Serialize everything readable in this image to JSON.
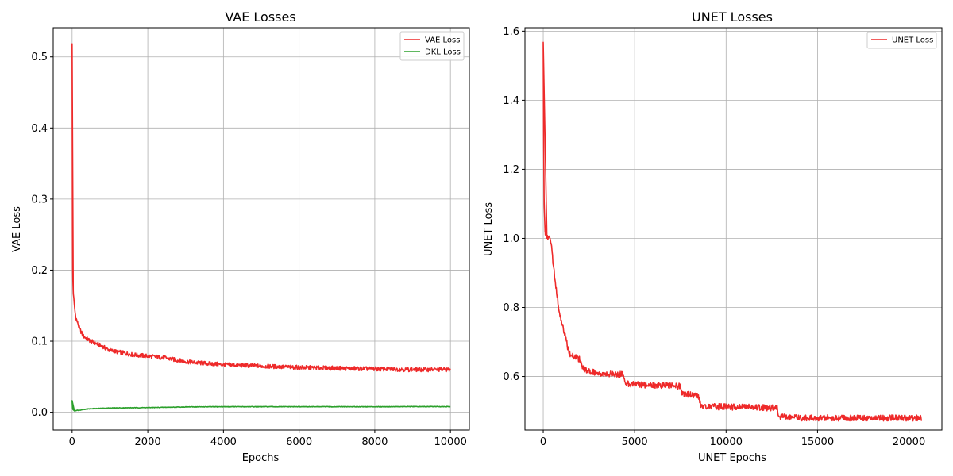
{
  "chart_data": [
    {
      "type": "line",
      "title": "VAE Losses",
      "xlabel": "Epochs",
      "ylabel": "VAE Loss",
      "xlim": [
        -500,
        10500
      ],
      "ylim": [
        -0.025,
        0.541
      ],
      "xticks": [
        0,
        2000,
        4000,
        6000,
        8000,
        10000
      ],
      "xtick_labels": [
        "0",
        "2000",
        "4000",
        "6000",
        "8000",
        "10000"
      ],
      "yticks": [
        0.0,
        0.1,
        0.2,
        0.3,
        0.4,
        0.5
      ],
      "ytick_labels": [
        "0.0",
        "0.1",
        "0.2",
        "0.3",
        "0.4",
        "0.5"
      ],
      "grid": true,
      "legend_position": "top-right",
      "series": [
        {
          "name": "VAE Loss",
          "color": "#ee2a2a",
          "x": [
            0,
            5,
            10,
            15,
            20,
            30,
            50,
            80,
            100,
            150,
            200,
            300,
            400,
            500,
            700,
            1000,
            1300,
            1600,
            2000,
            2400,
            2800,
            3200,
            4000,
            5000,
            6000,
            7000,
            8000,
            9000,
            10000
          ],
          "y": [
            0.517,
            0.4,
            0.25,
            0.2,
            0.185,
            0.17,
            0.155,
            0.14,
            0.133,
            0.125,
            0.117,
            0.107,
            0.103,
            0.1,
            0.095,
            0.087,
            0.084,
            0.081,
            0.079,
            0.077,
            0.073,
            0.07,
            0.067,
            0.065,
            0.063,
            0.062,
            0.061,
            0.06,
            0.06
          ]
        },
        {
          "name": "DKL Loss",
          "color": "#2ca02c",
          "x": [
            0,
            5,
            10,
            20,
            40,
            60,
            100,
            200,
            300,
            500,
            800,
            1000,
            2000,
            3000,
            4000,
            5000,
            6000,
            7000,
            8000,
            9000,
            10000
          ],
          "y": [
            0.016,
            0.012,
            0.006,
            0.004,
            0.003,
            0.002,
            0.0025,
            0.003,
            0.004,
            0.005,
            0.0055,
            0.006,
            0.0065,
            0.0075,
            0.0078,
            0.0078,
            0.0078,
            0.0078,
            0.0078,
            0.0079,
            0.008
          ]
        }
      ]
    },
    {
      "type": "line",
      "title": "UNET Losses",
      "xlabel": "UNET Epochs",
      "ylabel": "UNET Loss",
      "xlim": [
        -1000,
        21800
      ],
      "ylim": [
        0.445,
        1.61
      ],
      "xticks": [
        0,
        5000,
        10000,
        15000,
        20000
      ],
      "xtick_labels": [
        "0",
        "5000",
        "10000",
        "15000",
        "20000"
      ],
      "yticks": [
        0.6,
        0.8,
        1.0,
        1.2,
        1.4,
        1.6
      ],
      "ytick_labels": [
        "0.6",
        "0.8",
        "1.0",
        "1.2",
        "1.4",
        "1.6"
      ],
      "grid": true,
      "legend_position": "top-right",
      "series": [
        {
          "name": "UNET Loss",
          "color": "#ee2a2a",
          "x": [
            0,
            20,
            50,
            100,
            150,
            200,
            300,
            400,
            500,
            600,
            700,
            800,
            900,
            1000,
            1200,
            1400,
            1600,
            1800,
            2000,
            2200,
            2500,
            3000,
            3500,
            4000,
            4400,
            4500,
            5000,
            5500,
            6000,
            6500,
            7000,
            7500,
            7600,
            8000,
            8500,
            8600,
            9000,
            10000,
            11000,
            12000,
            12800,
            12900,
            13500,
            14000,
            15000,
            16000,
            17000,
            18000,
            19000,
            20000,
            20700
          ],
          "y": [
            1.56,
            1.3,
            1.1,
            1.02,
            1.01,
            1.005,
            1.0,
            0.995,
            0.95,
            0.9,
            0.86,
            0.82,
            0.78,
            0.76,
            0.72,
            0.67,
            0.66,
            0.655,
            0.65,
            0.62,
            0.615,
            0.61,
            0.608,
            0.607,
            0.605,
            0.58,
            0.578,
            0.576,
            0.575,
            0.574,
            0.573,
            0.572,
            0.55,
            0.548,
            0.546,
            0.515,
            0.513,
            0.512,
            0.511,
            0.51,
            0.508,
            0.485,
            0.482,
            0.48,
            0.48,
            0.48,
            0.48,
            0.48,
            0.48,
            0.48,
            0.48
          ]
        }
      ]
    }
  ]
}
